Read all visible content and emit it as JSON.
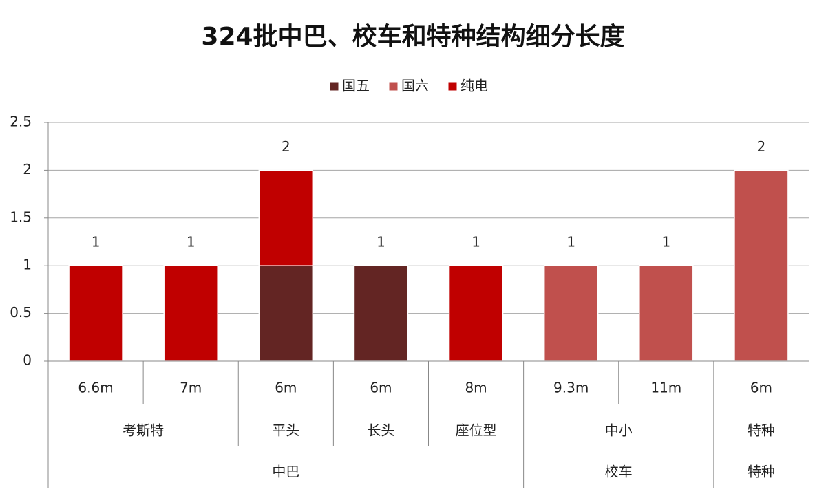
{
  "chart_data": {
    "type": "stacked-bar",
    "title": "324批中巴、校车和特种结构细分长度",
    "categories": [
      "6.6m",
      "7m",
      "6m",
      "6m",
      "8m",
      "9.3m",
      "11m",
      "6m"
    ],
    "category_groups": [
      [
        "考斯特",
        null,
        "平头",
        "长头",
        "座位型",
        "中小",
        null,
        "特种"
      ],
      [
        "中巴",
        null,
        null,
        null,
        null,
        "校车",
        null,
        "特种"
      ]
    ],
    "series": [
      {
        "name": "国五",
        "color": "#632523",
        "values": [
          null,
          null,
          1,
          1,
          null,
          null,
          null,
          null
        ]
      },
      {
        "name": "国六",
        "color": "#c0504d",
        "values": [
          null,
          null,
          null,
          null,
          null,
          1,
          1,
          2
        ]
      },
      {
        "name": "纯电",
        "color": "#c00000",
        "values": [
          1,
          1,
          1,
          null,
          1,
          null,
          null,
          null
        ]
      }
    ],
    "totals": [
      1,
      1,
      2,
      1,
      1,
      1,
      1,
      2
    ],
    "ylim": [
      0,
      2.5
    ],
    "yticks": [
      0,
      0.5,
      1,
      1.5,
      2,
      2.5
    ],
    "grid": true,
    "legend": "top"
  }
}
